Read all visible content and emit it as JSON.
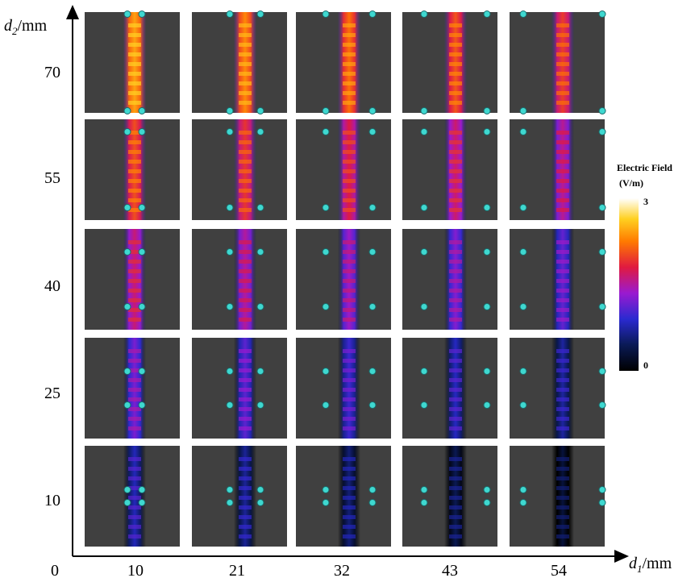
{
  "x_axis": {
    "symbol": "d",
    "subscript": "1",
    "unit": "/mm",
    "ticks": [
      "10",
      "21",
      "32",
      "43",
      "54"
    ]
  },
  "y_axis": {
    "symbol": "d",
    "subscript": "2",
    "unit": "/mm",
    "ticks": [
      "70",
      "55",
      "40",
      "25",
      "10"
    ]
  },
  "origin": "0",
  "colorbar": {
    "title_line1": "Electric Field",
    "title_line2": "(V/m)",
    "max": "3",
    "min": "0"
  }
}
